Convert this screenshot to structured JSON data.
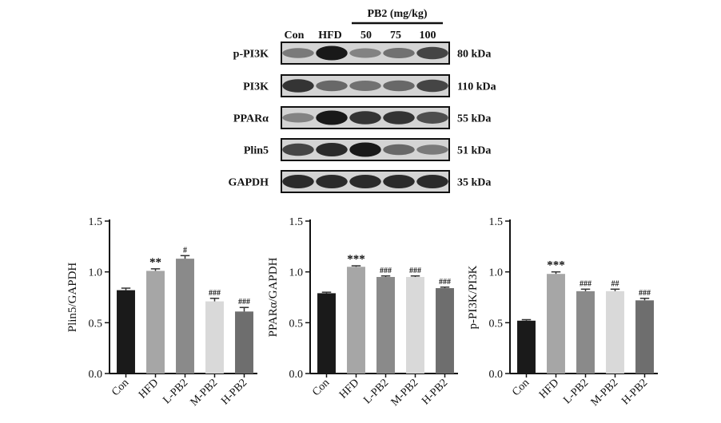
{
  "blot": {
    "lanes": [
      "Con",
      "HFD",
      "50",
      "75",
      "100"
    ],
    "group_label": "PB2 (mg/kg)",
    "rows": [
      {
        "name": "p-PI3K",
        "kda": "80 kDa",
        "intensity": [
          0.45,
          1.0,
          0.4,
          0.5,
          0.75
        ]
      },
      {
        "name": "PI3K",
        "kda": "110 kDa",
        "intensity": [
          0.85,
          0.55,
          0.5,
          0.55,
          0.75
        ]
      },
      {
        "name": "PPARα",
        "kda": "55 kDa",
        "intensity": [
          0.4,
          1.0,
          0.85,
          0.85,
          0.7
        ]
      },
      {
        "name": "Plin5",
        "kda": "51 kDa",
        "intensity": [
          0.75,
          0.9,
          1.0,
          0.55,
          0.45
        ]
      },
      {
        "name": "GAPDH",
        "kda": "35 kDa",
        "intensity": [
          0.9,
          0.9,
          0.9,
          0.9,
          0.9
        ]
      }
    ]
  },
  "chart_data": [
    {
      "type": "bar",
      "categories": [
        "Con",
        "HFD",
        "L-PB2",
        "M-PB2",
        "H-PB2"
      ],
      "values": [
        0.82,
        1.01,
        1.13,
        0.71,
        0.61
      ],
      "errors": [
        0.02,
        0.02,
        0.03,
        0.03,
        0.04
      ],
      "annotations": [
        "",
        "**",
        "#",
        "###",
        "###"
      ],
      "colors": [
        "#1a1a1a",
        "#a6a6a6",
        "#8a8a8a",
        "#d9d9d9",
        "#6e6e6e"
      ],
      "ylabel": "Plin5/GAPDH",
      "ylim": [
        0,
        1.5
      ],
      "yticks": [
        "0.0",
        "0.5",
        "1.0",
        "1.5"
      ]
    },
    {
      "type": "bar",
      "categories": [
        "Con",
        "HFD",
        "L-PB2",
        "M-PB2",
        "H-PB2"
      ],
      "values": [
        0.79,
        1.05,
        0.95,
        0.95,
        0.84
      ],
      "errors": [
        0.01,
        0.01,
        0.01,
        0.01,
        0.01
      ],
      "annotations": [
        "",
        "***",
        "###",
        "###",
        "###"
      ],
      "colors": [
        "#1a1a1a",
        "#a6a6a6",
        "#8a8a8a",
        "#d9d9d9",
        "#6e6e6e"
      ],
      "ylabel": "PPARα/GAPDH",
      "ylim": [
        0,
        1.5
      ],
      "yticks": [
        "0.0",
        "0.5",
        "1.0",
        "1.5"
      ]
    },
    {
      "type": "bar",
      "categories": [
        "Con",
        "HFD",
        "L-PB2",
        "M-PB2",
        "H-PB2"
      ],
      "values": [
        0.52,
        0.98,
        0.81,
        0.81,
        0.72
      ],
      "errors": [
        0.01,
        0.02,
        0.02,
        0.02,
        0.02
      ],
      "annotations": [
        "",
        "***",
        "###",
        "##",
        "###"
      ],
      "colors": [
        "#1a1a1a",
        "#a6a6a6",
        "#8a8a8a",
        "#d9d9d9",
        "#6e6e6e"
      ],
      "ylabel": "p-PI3K/PI3K",
      "ylim": [
        0,
        1.5
      ],
      "yticks": [
        "0.0",
        "0.5",
        "1.0",
        "1.5"
      ]
    }
  ]
}
